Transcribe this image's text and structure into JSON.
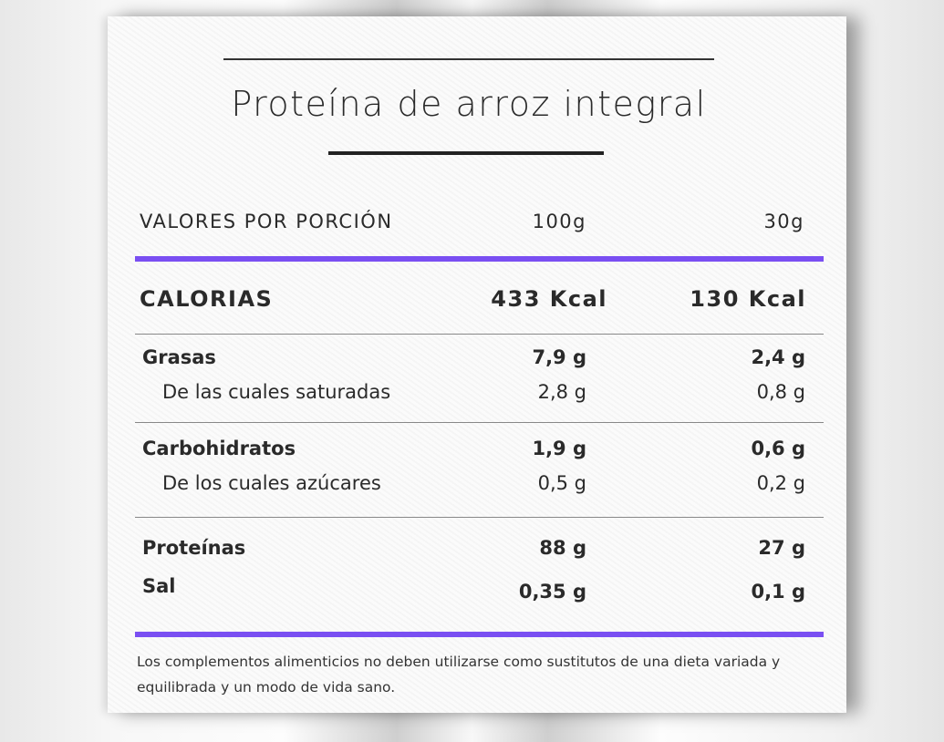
{
  "title": "Proteína de arroz integral",
  "header": {
    "label": "VALORES POR PORCIÓN",
    "col1": "100g",
    "col2": "30g"
  },
  "calories": {
    "label": "CALORIAS",
    "col1": "433 Kcal",
    "col2": "130 Kcal"
  },
  "sections": [
    {
      "rows": [
        {
          "label": "Grasas",
          "col1": "7,9 g",
          "col2": "2,4 g"
        },
        {
          "label": "De las cuales saturadas",
          "col1": "2,8 g",
          "col2": "0,8 g"
        }
      ]
    },
    {
      "rows": [
        {
          "label": "Carbohidratos",
          "col1": "1,9 g",
          "col2": "0,6 g"
        },
        {
          "label": "De los cuales azúcares",
          "col1": "0,5 g",
          "col2": "0,2 g"
        }
      ]
    },
    {
      "rows": [
        {
          "label": "Proteínas",
          "col1": "88 g",
          "col2": "27 g"
        },
        {
          "label": "Sal",
          "col1": "0,35 g",
          "col2": "0,1 g"
        }
      ]
    }
  ],
  "footnote": "Los complementos alimenticios no deben utilizarse como sustitutos de una dieta variada y equilibrada y un modo de vida sano."
}
